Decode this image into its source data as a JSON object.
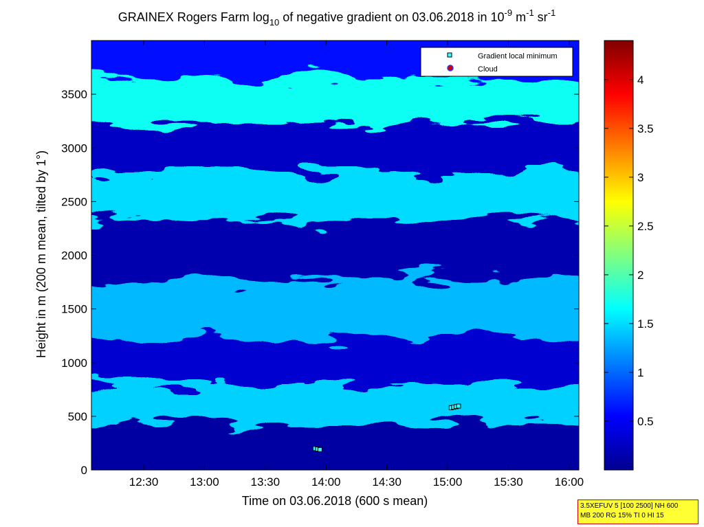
{
  "chart_data": {
    "type": "heatmap",
    "title": {
      "prefix": "GRAINEX Rogers Farm log",
      "sub": "10",
      "middle": " of negative gradient on 03.06.2018 in 10",
      "sup1": "-9",
      "unit1": " m",
      "sup2": "-1",
      "unit2": " sr",
      "sup3": "-1"
    },
    "xlabel": "Time on 03.06.2018 (600 s mean)",
    "ylabel": "Height in m (200 m mean, tilted by 1°)",
    "x_ticks": [
      "12:30",
      "13:00",
      "13:30",
      "14:00",
      "14:30",
      "15:00",
      "15:30",
      "16:00"
    ],
    "x_tick_hours": [
      12.5,
      13.0,
      13.5,
      14.0,
      14.5,
      15.0,
      15.5,
      16.0
    ],
    "xlim_hours": [
      12.07,
      16.08
    ],
    "y_ticks": [
      0,
      500,
      1000,
      1500,
      2000,
      2500,
      3000,
      3500
    ],
    "ylim": [
      0,
      4000
    ],
    "colorbar": {
      "ticks": [
        "0.5",
        "1",
        "1.5",
        "2",
        "2.5",
        "3",
        "3.5",
        "4"
      ],
      "tick_values": [
        0.5,
        1,
        1.5,
        2,
        2.5,
        3,
        3.5,
        4
      ],
      "range": [
        0,
        4.4
      ],
      "colormap": "jet"
    },
    "field_layers": [
      {
        "center_height": 240,
        "value": 0.15
      },
      {
        "center_height": 600,
        "value": 1.45
      },
      {
        "center_height": 1000,
        "value": 0.35
      },
      {
        "center_height": 1450,
        "value": 1.35
      },
      {
        "center_height": 2100,
        "value": 0.2
      },
      {
        "center_height": 2550,
        "value": 1.5
      },
      {
        "center_height": 3000,
        "value": 0.3
      },
      {
        "center_height": 3450,
        "value": 1.7
      },
      {
        "center_height": 3850,
        "value": 0.6
      }
    ],
    "legend": {
      "placement": "top-right",
      "entries": [
        {
          "label": "Gradient local minimum",
          "marker": "square",
          "color": "#33ffff"
        },
        {
          "label": "Cloud",
          "marker": "circle",
          "color": "#cc0000"
        }
      ]
    },
    "gradient_minima": [
      {
        "time_hours": 13.91,
        "height": 200
      },
      {
        "time_hours": 13.93,
        "height": 195
      },
      {
        "time_hours": 13.95,
        "height": 190
      },
      {
        "time_hours": 15.03,
        "height": 580
      },
      {
        "time_hours": 15.05,
        "height": 585
      },
      {
        "time_hours": 15.07,
        "height": 590
      },
      {
        "time_hours": 15.09,
        "height": 595
      }
    ],
    "grid": false
  },
  "settings_box": {
    "line1": "3.5XEFUV 5 [100 2500] NH 600",
    "line2": "MB 200 RG 15% TI 0 HI 15"
  }
}
